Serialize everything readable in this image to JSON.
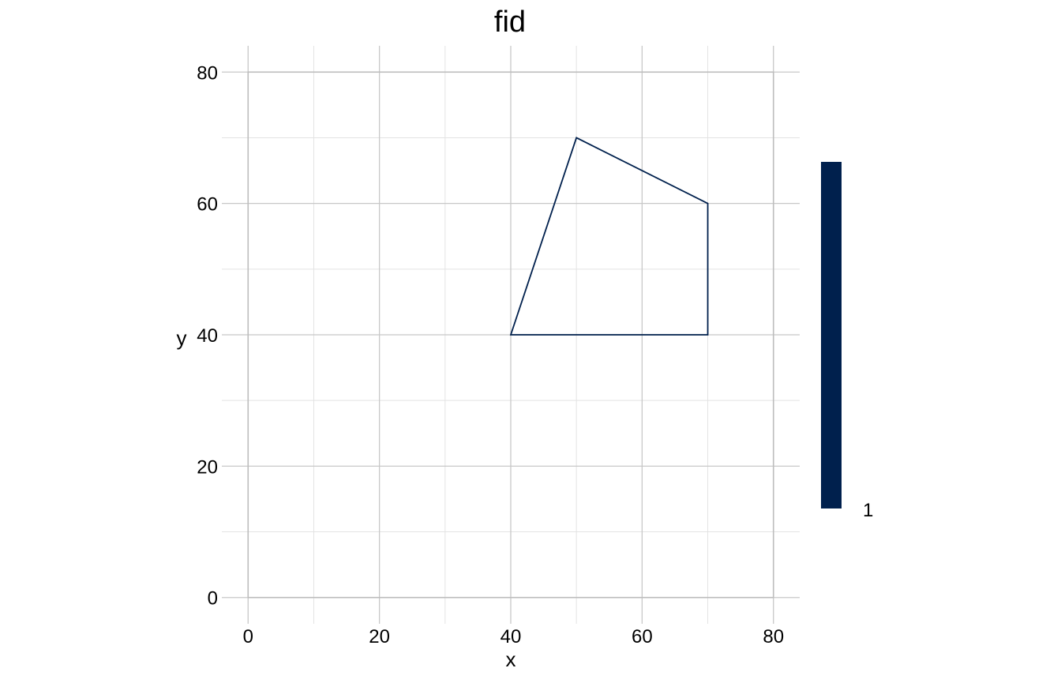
{
  "chart_data": {
    "type": "polygon",
    "title": "fid",
    "xlabel": "x",
    "ylabel": "y",
    "xlim": [
      -4,
      84
    ],
    "ylim": [
      -4,
      84
    ],
    "major_ticks": [
      0,
      20,
      40,
      60,
      80
    ],
    "minor_ticks": [
      10,
      30,
      50,
      70
    ],
    "x_tick_labels": [
      "0",
      "20",
      "40",
      "60",
      "80"
    ],
    "y_tick_labels": [
      "0",
      "20",
      "40",
      "60",
      "80"
    ],
    "grid": true,
    "series": [
      {
        "vertices": [
          [
            40,
            40
          ],
          [
            50,
            70
          ],
          [
            70,
            60
          ],
          [
            70,
            40
          ]
        ],
        "color": "#00204D",
        "fill": "none"
      }
    ],
    "legend": {
      "type": "colorbar",
      "placement": "right",
      "label": "1",
      "color": "#00204D"
    },
    "colors": {
      "major_grid": "#c8c8c8",
      "minor_grid": "#e3e3e3",
      "line": "#00204D"
    }
  }
}
